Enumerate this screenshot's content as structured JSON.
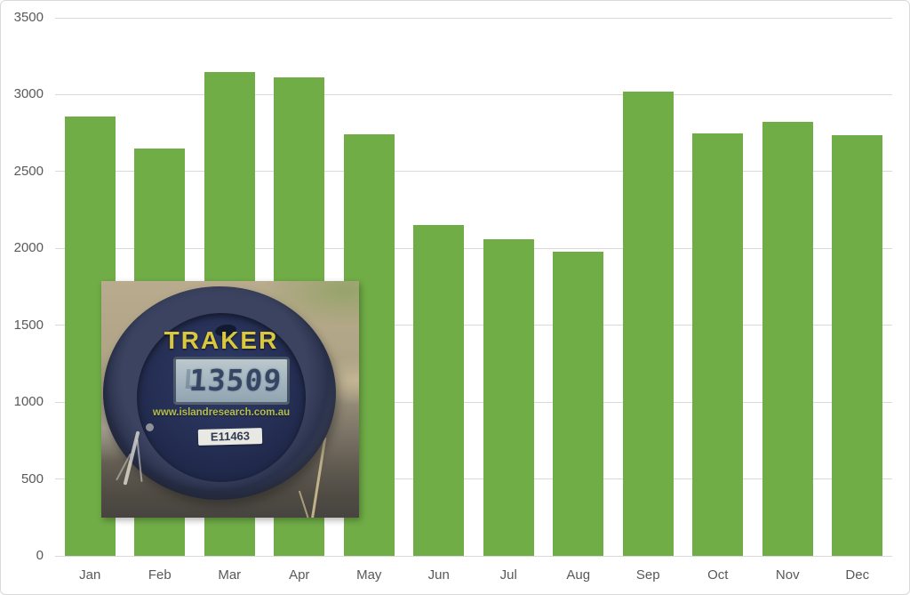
{
  "chart_data": {
    "type": "bar",
    "title": "",
    "xlabel": "",
    "ylabel": "",
    "categories": [
      "Jan",
      "Feb",
      "Mar",
      "Apr",
      "May",
      "Jun",
      "Jul",
      "Aug",
      "Sep",
      "Oct",
      "Nov",
      "Dec"
    ],
    "values": [
      2860,
      2650,
      3145,
      3115,
      2740,
      2150,
      2060,
      1980,
      3020,
      2750,
      2825,
      2735
    ],
    "ylim": [
      0,
      3500
    ],
    "yticks": [
      "0",
      "500",
      "1000",
      "1500",
      "2000",
      "2500",
      "3000",
      "3500"
    ],
    "grid": true,
    "legend_position": "none",
    "bar_color": "#70AD47",
    "gridline_color": "#D9D9D9",
    "axis_text_color": "#595959",
    "border_color": "#D9D9D9"
  },
  "overlay_photo": {
    "device_brand": "TRAKER",
    "lcd_value": "13509",
    "lcd_ghost": "L",
    "website": "www.islandresearch.com.au",
    "serial_label": "E11463",
    "colors": {
      "face_navy": "#242e52",
      "ring_slate": "#3b4360",
      "lcd_panel": "#a9bac3",
      "lcd_digits": "#2c3c5c",
      "brand_yellow": "#d9c73f",
      "url_green": "#b5be4e",
      "label_white": "#e9e9e3"
    }
  }
}
